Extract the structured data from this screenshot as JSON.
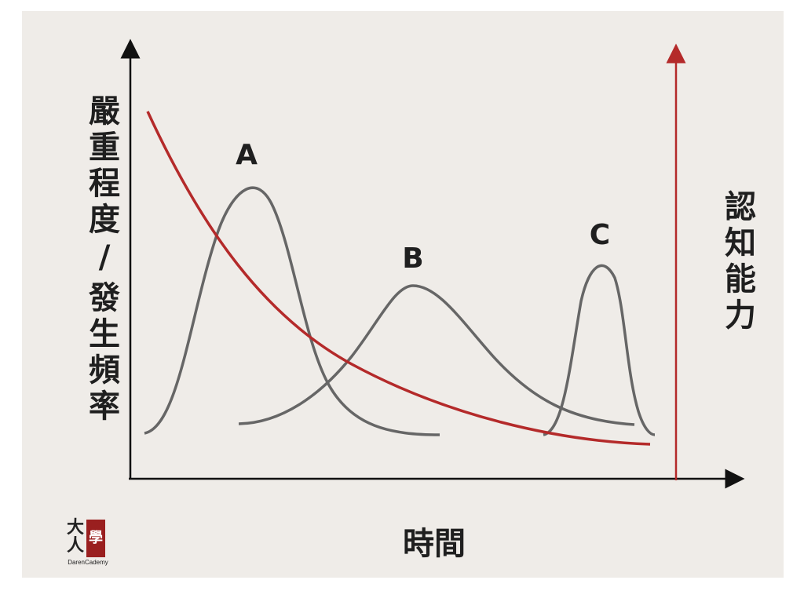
{
  "y_axis_label": [
    "嚴",
    "重",
    "程",
    "度",
    "/",
    "發",
    "生",
    "頻",
    "率"
  ],
  "x_axis_label": "時間",
  "right_axis_label": [
    "認",
    "知",
    "能",
    "力"
  ],
  "peaks": [
    {
      "label": "A"
    },
    {
      "label": "B"
    },
    {
      "label": "C"
    }
  ],
  "logo": {
    "char_top": "大",
    "char_bottom": "人",
    "seal_char": "學",
    "brand": "DarenCademy"
  },
  "colors": {
    "background": "#efece8",
    "curve": "#666666",
    "cognition_curve": "#b42a2a",
    "axis": "#111111"
  }
}
